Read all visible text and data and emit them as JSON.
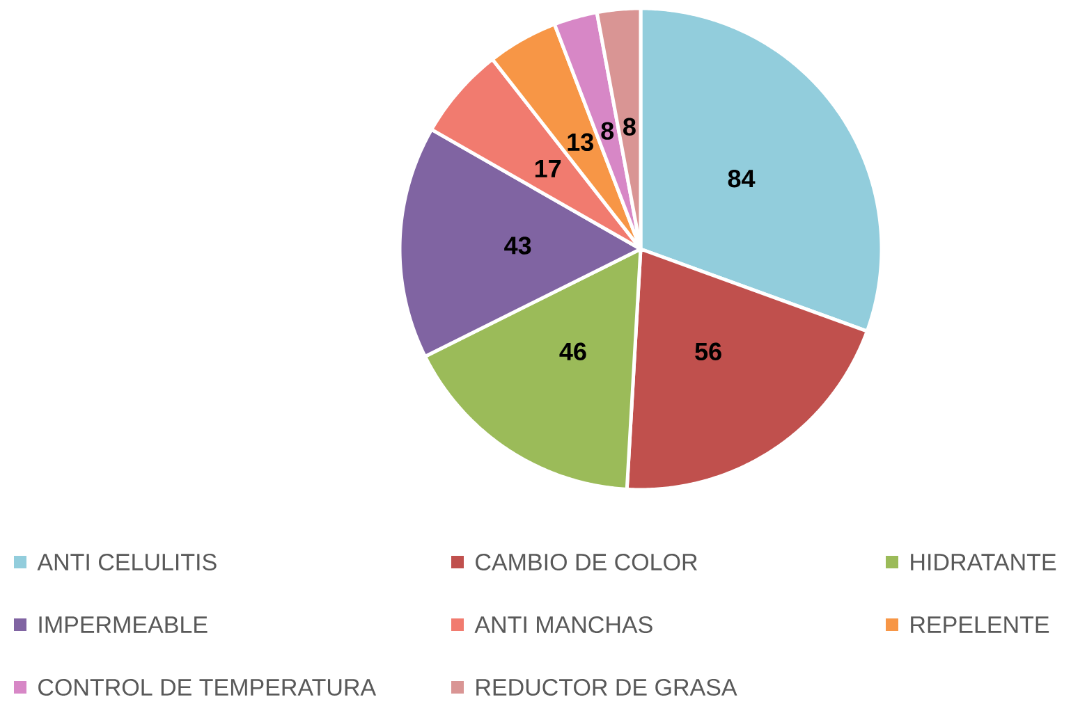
{
  "chart_data": {
    "type": "pie",
    "categories": [
      "ANTI CELULITIS",
      "CAMBIO DE COLOR",
      "HIDRATANTE",
      "IMPERMEABLE",
      "ANTI MANCHAS",
      "REPELENTE",
      "CONTROL DE TEMPERATURA",
      "REDUCTOR DE GRASA"
    ],
    "values": [
      84,
      56,
      46,
      43,
      17,
      13,
      8,
      8
    ],
    "colors": [
      "#92cddc",
      "#c0504d",
      "#9bbb59",
      "#8064a2",
      "#f17b6f",
      "#f79646",
      "#d787c6",
      "#d99594"
    ],
    "data_labels": true,
    "legend": "bottom"
  }
}
